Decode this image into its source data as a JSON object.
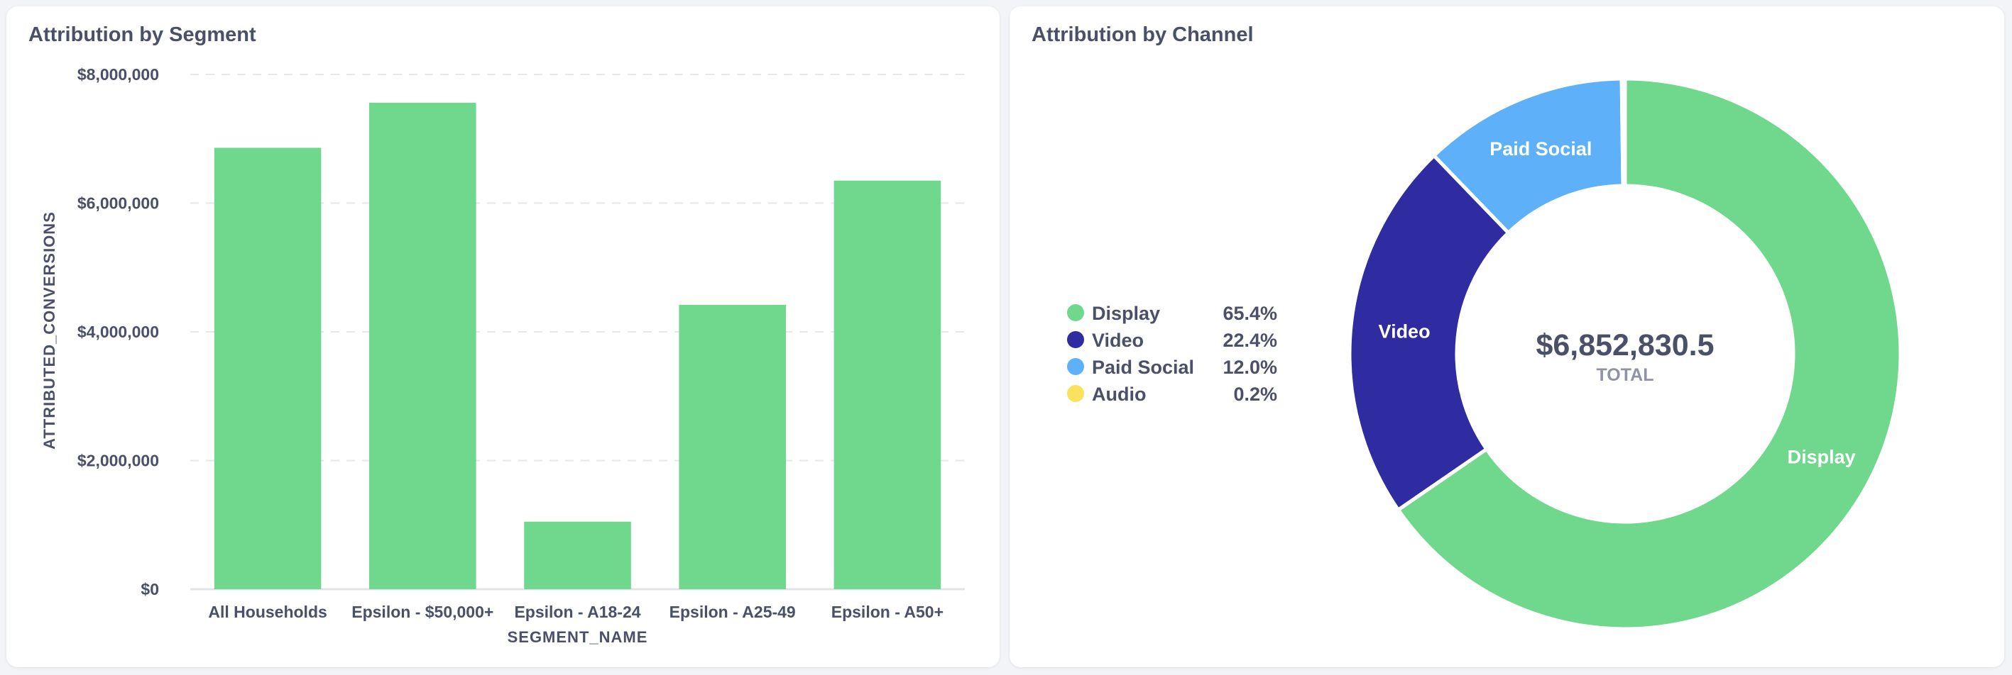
{
  "chart_data": [
    {
      "type": "bar",
      "title": "Attribution by Segment",
      "xlabel": "SEGMENT_NAME",
      "ylabel": "ATTRIBUTED_CONVERSIONS",
      "categories": [
        "All Households",
        "Epsilon - $50,000+",
        "Epsilon - A18-24",
        "Epsilon - A25-49",
        "Epsilon - A50+"
      ],
      "values": [
        6860000,
        7560000,
        1050000,
        4420000,
        6350000
      ],
      "ylim": [
        0,
        8000000
      ],
      "yticks": [
        0,
        2000000,
        4000000,
        6000000,
        8000000
      ],
      "ytick_labels": [
        "$0",
        "$2,000,000",
        "$4,000,000",
        "$6,000,000",
        "$8,000,000"
      ],
      "grid": true,
      "color": "#6fd88d"
    },
    {
      "type": "pie",
      "title": "Attribution by Channel",
      "donut": true,
      "center_value": "$6,852,830.5",
      "center_label": "TOTAL",
      "legend_position": "left",
      "slices": [
        {
          "name": "Display",
          "percent": 65.4,
          "percent_label": "65.4%",
          "color": "#6fd88d"
        },
        {
          "name": "Video",
          "percent": 22.4,
          "percent_label": "22.4%",
          "color": "#2e2ca0"
        },
        {
          "name": "Paid Social",
          "percent": 12.0,
          "percent_label": "12.0%",
          "color": "#5eb1f8"
        },
        {
          "name": "Audio",
          "percent": 0.2,
          "percent_label": "0.2%",
          "color": "#fce15c"
        }
      ]
    }
  ]
}
